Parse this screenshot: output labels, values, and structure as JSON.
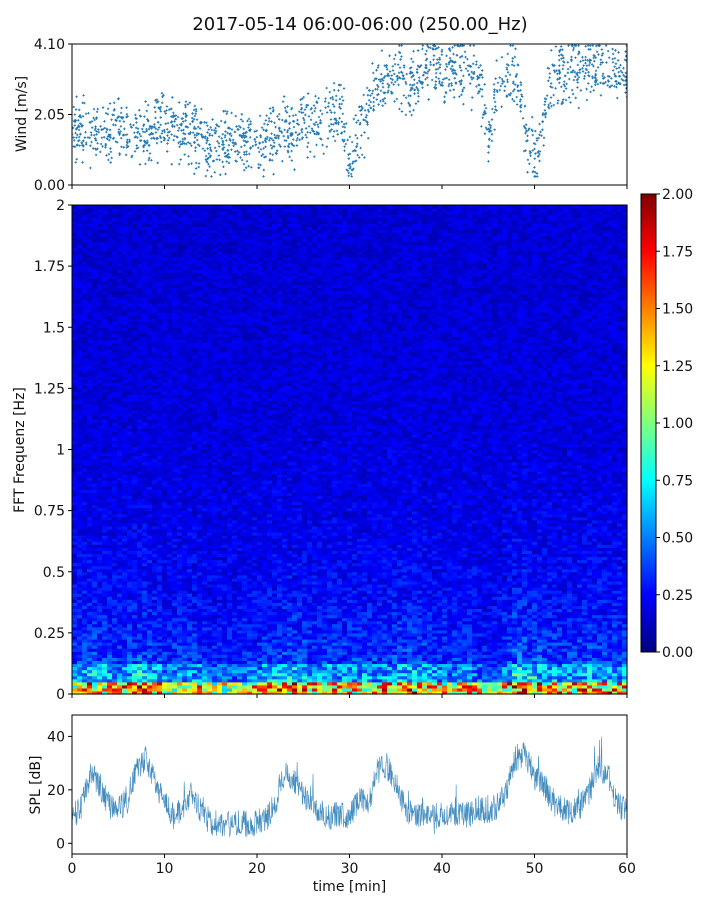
{
  "title": "2017-05-14 06:00-06:00 (250.00_Hz)",
  "chart_data": [
    {
      "type": "scatter",
      "panel": "wind",
      "ylabel": "Wind [m/s]",
      "xlabel": "",
      "xlim": [
        0,
        60
      ],
      "ylim": [
        0.0,
        4.1
      ],
      "yticks": [
        "0.00",
        "2.05",
        "4.10"
      ],
      "color": "#1f77b4",
      "series": [
        {
          "trend_x": [
            0,
            3,
            5,
            8,
            10,
            13,
            15,
            18,
            20,
            22,
            24,
            27,
            29,
            30,
            31,
            33,
            35,
            37,
            38,
            40,
            42,
            44,
            45,
            46,
            48,
            49,
            50,
            52,
            54,
            56,
            58,
            60
          ],
          "trend_y": [
            1.6,
            1.5,
            1.7,
            1.3,
            1.9,
            1.5,
            1.1,
            1.3,
            1.2,
            1.5,
            1.5,
            1.9,
            2.4,
            0.6,
            1.6,
            2.9,
            3.1,
            2.9,
            3.5,
            3.4,
            3.5,
            3.2,
            1.2,
            2.8,
            3.2,
            1.6,
            0.6,
            3.2,
            3.3,
            3.5,
            3.4,
            3.3
          ]
        }
      ]
    },
    {
      "type": "heatmap",
      "panel": "spectrogram",
      "ylabel": "FFT Frequenz [Hz]",
      "xlabel": "",
      "xlim": [
        0,
        60
      ],
      "ylim": [
        0,
        2
      ],
      "yticks": [
        "0",
        "0.25",
        "0.5",
        "0.75",
        "1",
        "1.25",
        "1.5",
        "1.75",
        "2"
      ],
      "colormap": "jet",
      "colorbar_range": [
        0.0,
        2.0
      ],
      "colorbar_ticks": [
        "0.00",
        "0.25",
        "0.50",
        "0.75",
        "1.00",
        "1.25",
        "1.50",
        "1.75",
        "2.00"
      ],
      "activity_x": [
        0,
        2,
        5,
        8,
        10,
        13,
        15,
        18,
        20,
        22,
        24,
        27,
        30,
        33,
        36,
        40,
        43,
        45,
        46,
        48,
        50,
        53,
        56,
        58,
        60
      ],
      "activity_level": [
        0.55,
        0.75,
        0.6,
        0.9,
        0.5,
        0.65,
        0.4,
        0.45,
        0.55,
        0.7,
        0.8,
        0.6,
        0.65,
        0.6,
        0.8,
        0.55,
        0.6,
        0.3,
        0.4,
        0.95,
        0.8,
        0.6,
        0.75,
        0.7,
        0.65
      ]
    },
    {
      "type": "line",
      "panel": "spl",
      "ylabel": "SPL [dB]",
      "xlabel": "time [min]",
      "xlim": [
        0,
        60
      ],
      "ylim": [
        -4,
        48
      ],
      "yticks": [
        "0",
        "20",
        "40"
      ],
      "xticks": [
        "0",
        "10",
        "20",
        "30",
        "40",
        "50",
        "60"
      ],
      "color": "#1f77b4",
      "series": [
        {
          "x": [
            0,
            1,
            2,
            3,
            4,
            5,
            6,
            7,
            8,
            9,
            10,
            11,
            12,
            13,
            14,
            15,
            16,
            17,
            18,
            19,
            20,
            21,
            22,
            23,
            24,
            25,
            26,
            27,
            28,
            29,
            30,
            31,
            32,
            33,
            34,
            35,
            36,
            37,
            38,
            39,
            40,
            41,
            42,
            43,
            44,
            45,
            46,
            47,
            48,
            49,
            50,
            51,
            52,
            53,
            54,
            55,
            56,
            57,
            58,
            59,
            60
          ],
          "y": [
            10,
            13,
            26,
            22,
            14,
            12,
            17,
            27,
            32,
            22,
            16,
            10,
            13,
            19,
            11,
            8,
            7,
            7,
            8,
            7,
            8,
            9,
            15,
            27,
            24,
            18,
            14,
            11,
            10,
            11,
            10,
            17,
            14,
            27,
            29,
            23,
            13,
            10,
            11,
            10,
            11,
            12,
            10,
            11,
            13,
            12,
            14,
            20,
            32,
            33,
            25,
            22,
            15,
            13,
            11,
            14,
            20,
            29,
            25,
            14,
            13
          ]
        }
      ]
    }
  ]
}
